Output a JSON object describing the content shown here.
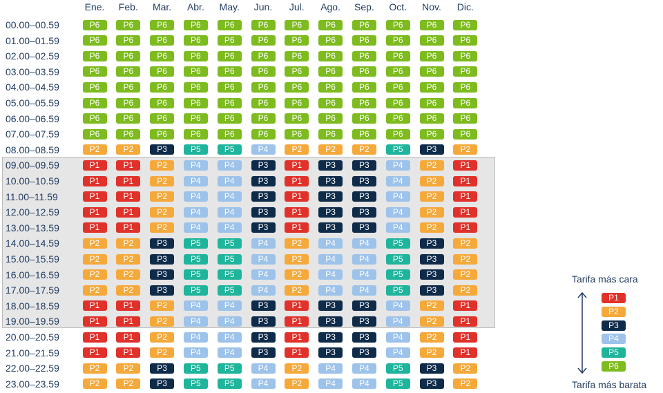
{
  "chart_data": {
    "type": "table",
    "months": [
      "Ene.",
      "Feb.",
      "Mar.",
      "Abr.",
      "May.",
      "Jun.",
      "Jul.",
      "Ago.",
      "Sep.",
      "Oct.",
      "Nov.",
      "Dic."
    ],
    "hours": [
      "00.00–00.59",
      "01.00–01.59",
      "02.00–02.59",
      "03.00–03.59",
      "04.00–04.59",
      "05.00–05.59",
      "06.00–06.59",
      "07.00–07.59",
      "08.00–08.59",
      "09.00–09.59",
      "10.00–10.59",
      "11.00–11.59",
      "12.00–12.59",
      "13.00–13.59",
      "14.00–14.59",
      "15.00–15.59",
      "16.00–16.59",
      "17.00–17.59",
      "18.00–18.59",
      "19.00–19.59",
      "20.00–20.59",
      "21.00–21.59",
      "22.00–22.59",
      "23.00–23.59"
    ],
    "cells": [
      [
        "P6",
        "P6",
        "P6",
        "P6",
        "P6",
        "P6",
        "P6",
        "P6",
        "P6",
        "P6",
        "P6",
        "P6"
      ],
      [
        "P6",
        "P6",
        "P6",
        "P6",
        "P6",
        "P6",
        "P6",
        "P6",
        "P6",
        "P6",
        "P6",
        "P6"
      ],
      [
        "P6",
        "P6",
        "P6",
        "P6",
        "P6",
        "P6",
        "P6",
        "P6",
        "P6",
        "P6",
        "P6",
        "P6"
      ],
      [
        "P6",
        "P6",
        "P6",
        "P6",
        "P6",
        "P6",
        "P6",
        "P6",
        "P6",
        "P6",
        "P6",
        "P6"
      ],
      [
        "P6",
        "P6",
        "P6",
        "P6",
        "P6",
        "P6",
        "P6",
        "P6",
        "P6",
        "P6",
        "P6",
        "P6"
      ],
      [
        "P6",
        "P6",
        "P6",
        "P6",
        "P6",
        "P6",
        "P6",
        "P6",
        "P6",
        "P6",
        "P6",
        "P6"
      ],
      [
        "P6",
        "P6",
        "P6",
        "P6",
        "P6",
        "P6",
        "P6",
        "P6",
        "P6",
        "P6",
        "P6",
        "P6"
      ],
      [
        "P6",
        "P6",
        "P6",
        "P6",
        "P6",
        "P6",
        "P6",
        "P6",
        "P6",
        "P6",
        "P6",
        "P6"
      ],
      [
        "P2",
        "P2",
        "P3",
        "P5",
        "P5",
        "P4",
        "P2",
        "P2",
        "P2",
        "P5",
        "P3",
        "P2"
      ],
      [
        "P1",
        "P1",
        "P2",
        "P4",
        "P4",
        "P3",
        "P1",
        "P3",
        "P3",
        "P4",
        "P2",
        "P1"
      ],
      [
        "P1",
        "P1",
        "P2",
        "P4",
        "P4",
        "P3",
        "P1",
        "P3",
        "P3",
        "P4",
        "P2",
        "P1"
      ],
      [
        "P1",
        "P1",
        "P2",
        "P4",
        "P4",
        "P3",
        "P1",
        "P3",
        "P3",
        "P4",
        "P2",
        "P1"
      ],
      [
        "P1",
        "P1",
        "P2",
        "P4",
        "P4",
        "P3",
        "P1",
        "P3",
        "P3",
        "P4",
        "P2",
        "P1"
      ],
      [
        "P1",
        "P1",
        "P2",
        "P4",
        "P4",
        "P3",
        "P1",
        "P3",
        "P3",
        "P4",
        "P2",
        "P1"
      ],
      [
        "P2",
        "P2",
        "P3",
        "P5",
        "P5",
        "P4",
        "P2",
        "P4",
        "P4",
        "P5",
        "P3",
        "P2"
      ],
      [
        "P2",
        "P2",
        "P3",
        "P5",
        "P5",
        "P4",
        "P2",
        "P4",
        "P4",
        "P5",
        "P3",
        "P2"
      ],
      [
        "P2",
        "P2",
        "P3",
        "P5",
        "P5",
        "P4",
        "P2",
        "P4",
        "P4",
        "P5",
        "P3",
        "P2"
      ],
      [
        "P2",
        "P2",
        "P3",
        "P5",
        "P5",
        "P4",
        "P2",
        "P4",
        "P4",
        "P5",
        "P3",
        "P2"
      ],
      [
        "P1",
        "P1",
        "P2",
        "P4",
        "P4",
        "P3",
        "P1",
        "P3",
        "P3",
        "P4",
        "P2",
        "P1"
      ],
      [
        "P1",
        "P1",
        "P2",
        "P4",
        "P4",
        "P3",
        "P1",
        "P3",
        "P3",
        "P4",
        "P2",
        "P1"
      ],
      [
        "P1",
        "P1",
        "P2",
        "P4",
        "P4",
        "P3",
        "P1",
        "P3",
        "P3",
        "P4",
        "P2",
        "P1"
      ],
      [
        "P1",
        "P1",
        "P2",
        "P4",
        "P4",
        "P3",
        "P1",
        "P3",
        "P3",
        "P4",
        "P2",
        "P1"
      ],
      [
        "P2",
        "P2",
        "P3",
        "P5",
        "P5",
        "P4",
        "P2",
        "P4",
        "P4",
        "P5",
        "P3",
        "P2"
      ],
      [
        "P2",
        "P2",
        "P3",
        "P5",
        "P5",
        "P4",
        "P2",
        "P4",
        "P4",
        "P5",
        "P3",
        "P2"
      ]
    ],
    "highlighted_hours": [
      "09.00–09.59",
      "19.00–19.59"
    ],
    "legend": {
      "placement": "bottom-right",
      "top_label": "Tarifa más cara",
      "bottom_label": "Tarifa más barata",
      "order": [
        "P1",
        "P2",
        "P3",
        "P4",
        "P5",
        "P6"
      ]
    }
  },
  "colors": {
    "P1": "#e0312a",
    "P2": "#f5a93b",
    "P3": "#0f2b4a",
    "P4": "#9dc3ea",
    "P5": "#1fb59c",
    "P6": "#7dbb1e",
    "text": "#1f3a5f",
    "highlight_band": "#e6e6e6"
  }
}
